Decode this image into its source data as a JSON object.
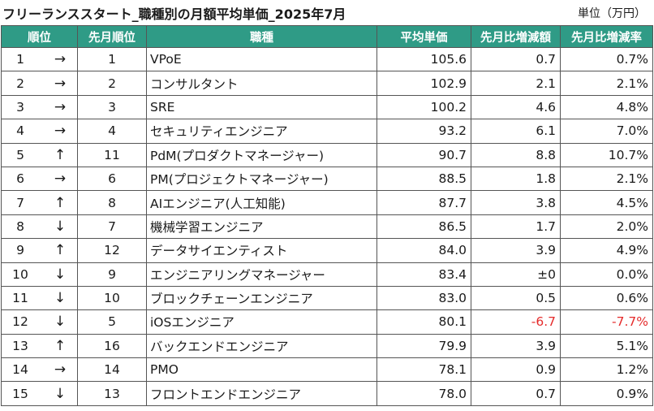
{
  "title": "フリーランススタート_職種別の月額平均単価_2025年7月",
  "unit": "単位（万円）",
  "headers": {
    "rank": "順位",
    "prev_rank": "先月順位",
    "job": "職種",
    "avg_price": "平均単価",
    "mom_diff": "先月比増減額",
    "mom_rate": "先月比増減率"
  },
  "rows": [
    {
      "rank": "1",
      "trend": "→",
      "prev_rank": "1",
      "job": "VPoE",
      "avg_price": "105.6",
      "mom_diff": "0.7",
      "mom_rate": "0.7%"
    },
    {
      "rank": "2",
      "trend": "→",
      "prev_rank": "2",
      "job": "コンサルタント",
      "avg_price": "102.9",
      "mom_diff": "2.1",
      "mom_rate": "2.1%"
    },
    {
      "rank": "3",
      "trend": "→",
      "prev_rank": "3",
      "job": "SRE",
      "avg_price": "100.2",
      "mom_diff": "4.6",
      "mom_rate": "4.8%"
    },
    {
      "rank": "4",
      "trend": "→",
      "prev_rank": "4",
      "job": "セキュリティエンジニア",
      "avg_price": "93.2",
      "mom_diff": "6.1",
      "mom_rate": "7.0%"
    },
    {
      "rank": "5",
      "trend": "↑",
      "prev_rank": "11",
      "job": "PdM(プロダクトマネージャー)",
      "avg_price": "90.7",
      "mom_diff": "8.8",
      "mom_rate": "10.7%"
    },
    {
      "rank": "6",
      "trend": "→",
      "prev_rank": "6",
      "job": "PM(プロジェクトマネージャー)",
      "avg_price": "88.5",
      "mom_diff": "1.8",
      "mom_rate": "2.1%"
    },
    {
      "rank": "7",
      "trend": "↑",
      "prev_rank": "8",
      "job": "AIエンジニア(人工知能)",
      "avg_price": "87.7",
      "mom_diff": "3.8",
      "mom_rate": "4.5%"
    },
    {
      "rank": "8",
      "trend": "↓",
      "prev_rank": "7",
      "job": "機械学習エンジニア",
      "avg_price": "86.5",
      "mom_diff": "1.7",
      "mom_rate": "2.0%"
    },
    {
      "rank": "9",
      "trend": "↑",
      "prev_rank": "12",
      "job": "データサイエンティスト",
      "avg_price": "84.0",
      "mom_diff": "3.9",
      "mom_rate": "4.9%"
    },
    {
      "rank": "10",
      "trend": "↓",
      "prev_rank": "9",
      "job": "エンジニアリングマネージャー",
      "avg_price": "83.4",
      "mom_diff": "±0",
      "mom_rate": "0.0%"
    },
    {
      "rank": "11",
      "trend": "↓",
      "prev_rank": "10",
      "job": "ブロックチェーンエンジニア",
      "avg_price": "83.0",
      "mom_diff": "0.5",
      "mom_rate": "0.6%"
    },
    {
      "rank": "12",
      "trend": "↓",
      "prev_rank": "5",
      "job": "iOSエンジニア",
      "avg_price": "80.1",
      "mom_diff": "-6.7",
      "mom_rate": "-7.7%",
      "negative": true
    },
    {
      "rank": "13",
      "trend": "↑",
      "prev_rank": "16",
      "job": "バックエンドエンジニア",
      "avg_price": "79.9",
      "mom_diff": "3.9",
      "mom_rate": "5.1%"
    },
    {
      "rank": "14",
      "trend": "→",
      "prev_rank": "14",
      "job": "PMO",
      "avg_price": "78.1",
      "mom_diff": "0.9",
      "mom_rate": "1.2%"
    },
    {
      "rank": "15",
      "trend": "↓",
      "prev_rank": "13",
      "job": "フロントエンドエンジニア",
      "avg_price": "78.0",
      "mom_diff": "0.7",
      "mom_rate": "0.9%"
    }
  ],
  "colors": {
    "header_bg": "#2f9b86",
    "header_text": "#ffffff",
    "negative_text": "#e52b2b",
    "border": "#555555"
  }
}
